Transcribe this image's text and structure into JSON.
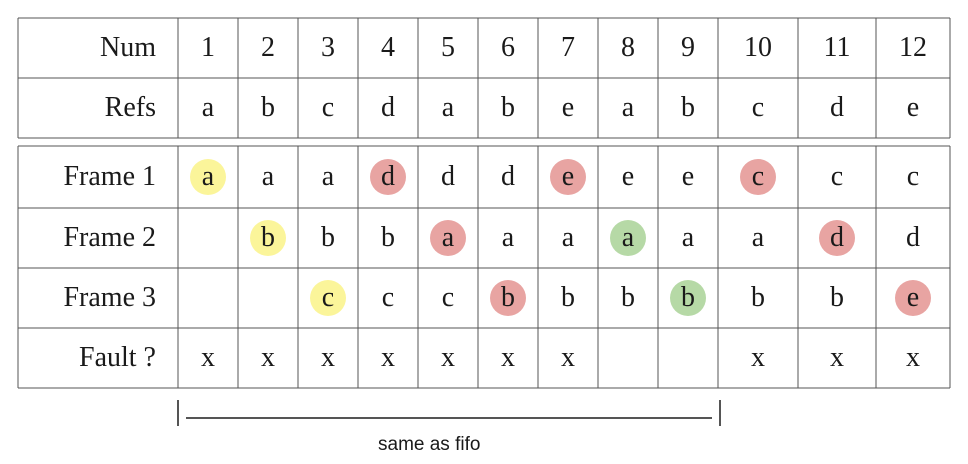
{
  "header": {
    "num_label": "Num",
    "nums": [
      "1",
      "2",
      "3",
      "4",
      "5",
      "6",
      "7",
      "8",
      "9",
      "10",
      "11",
      "12"
    ],
    "refs_label": "Refs",
    "refs": [
      "a",
      "b",
      "c",
      "d",
      "a",
      "b",
      "e",
      "a",
      "b",
      "c",
      "d",
      "e"
    ]
  },
  "frames": [
    {
      "label": "Frame 1",
      "cells": [
        "a",
        "a",
        "a",
        "d",
        "d",
        "d",
        "e",
        "e",
        "e",
        "c",
        "c",
        "c"
      ]
    },
    {
      "label": "Frame 2",
      "cells": [
        "",
        "b",
        "b",
        "b",
        "a",
        "a",
        "a",
        "a",
        "a",
        "a",
        "d",
        "d"
      ]
    },
    {
      "label": "Frame 3",
      "cells": [
        "",
        "",
        "c",
        "c",
        "c",
        "b",
        "b",
        "b",
        "b",
        "b",
        "b",
        "e"
      ]
    }
  ],
  "faults": {
    "label": "Fault ?",
    "cells": [
      "x",
      "x",
      "x",
      "x",
      "x",
      "x",
      "x",
      "",
      "",
      "x",
      "x",
      "x"
    ]
  },
  "highlights": [
    {
      "frame": 0,
      "col": 0,
      "color": "yellow"
    },
    {
      "frame": 0,
      "col": 3,
      "color": "red"
    },
    {
      "frame": 0,
      "col": 6,
      "color": "red"
    },
    {
      "frame": 0,
      "col": 9,
      "color": "red"
    },
    {
      "frame": 1,
      "col": 1,
      "color": "yellow"
    },
    {
      "frame": 1,
      "col": 4,
      "color": "red"
    },
    {
      "frame": 1,
      "col": 7,
      "color": "green"
    },
    {
      "frame": 1,
      "col": 10,
      "color": "red"
    },
    {
      "frame": 2,
      "col": 2,
      "color": "yellow"
    },
    {
      "frame": 2,
      "col": 5,
      "color": "red"
    },
    {
      "frame": 2,
      "col": 8,
      "color": "green"
    },
    {
      "frame": 2,
      "col": 11,
      "color": "red"
    }
  ],
  "colors": {
    "yellow": "#fbf59a",
    "red": "#e8a4a2",
    "green": "#b6d9a6",
    "line": "#555555"
  },
  "caption": "same as fifo"
}
